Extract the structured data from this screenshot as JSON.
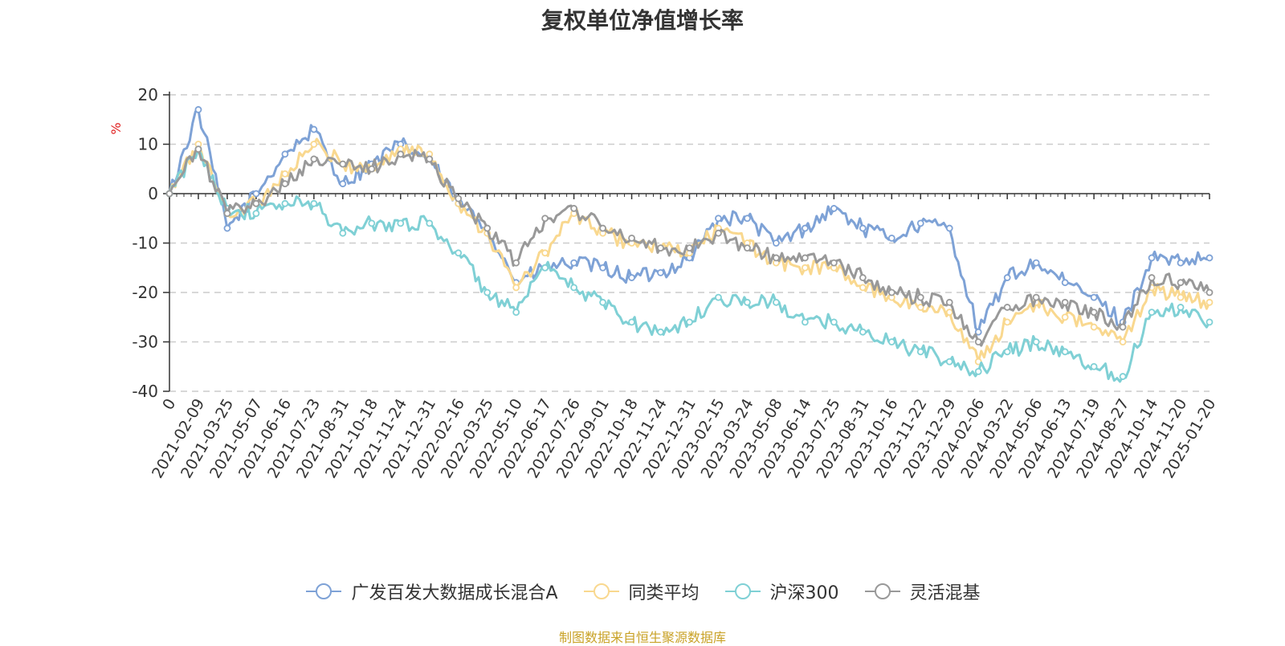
{
  "chart_data": {
    "type": "line",
    "title": "复权单位净值增长率",
    "ylabel": "%",
    "ylim": [
      -40,
      20
    ],
    "yticks": [
      20,
      10,
      0,
      -10,
      -20,
      -30,
      -40
    ],
    "grid": true,
    "legend_position": "bottom",
    "x_ticks": [
      "0",
      "2021-02-09",
      "2021-03-25",
      "2021-05-07",
      "2021-06-16",
      "2021-07-23",
      "2021-08-31",
      "2021-10-18",
      "2021-11-24",
      "2021-12-31",
      "2022-02-16",
      "2022-03-25",
      "2022-05-10",
      "2022-06-17",
      "2022-07-26",
      "2022-09-01",
      "2022-10-18",
      "2022-11-24",
      "2022-12-31",
      "2023-02-15",
      "2023-03-24",
      "2023-05-08",
      "2023-06-14",
      "2023-07-25",
      "2023-08-31",
      "2023-10-16",
      "2023-11-22",
      "2023-12-29",
      "2024-02-06",
      "2024-03-22",
      "2024-05-06",
      "2024-06-13",
      "2024-07-19",
      "2024-08-27",
      "2024-10-14",
      "2024-11-20",
      "2025-01-20"
    ],
    "series": [
      {
        "name": "广发百发大数据成长混合A",
        "color": "#7ea2d6",
        "values": [
          0,
          17,
          -7,
          0,
          8,
          13,
          2,
          6,
          10,
          7,
          -2,
          -7,
          -18,
          -15,
          -14,
          -15,
          -17,
          -16,
          -13,
          -5,
          -5,
          -10,
          -7,
          -3,
          -7,
          -9,
          -6,
          -7,
          -28,
          -17,
          -14,
          -18,
          -21,
          -26,
          -13,
          -14,
          -13
        ]
      },
      {
        "name": "同类平均",
        "color": "#f9d88f",
        "values": [
          0,
          10,
          -4,
          -2,
          4,
          10,
          6,
          5,
          9,
          8,
          -2,
          -8,
          -19,
          -12,
          -4,
          -8,
          -10,
          -11,
          -12,
          -7,
          -10,
          -14,
          -15,
          -15,
          -19,
          -21,
          -23,
          -24,
          -34,
          -26,
          -22,
          -25,
          -27,
          -30,
          -19,
          -21,
          -22
        ]
      },
      {
        "name": "沪深300",
        "color": "#7fd0d5",
        "values": [
          0,
          9,
          -3,
          -4,
          -2,
          -2,
          -8,
          -6,
          -6,
          -6,
          -12,
          -20,
          -24,
          -15,
          -19,
          -22,
          -26,
          -28,
          -26,
          -21,
          -22,
          -22,
          -26,
          -26,
          -28,
          -30,
          -32,
          -34,
          -36,
          -32,
          -30,
          -32,
          -35,
          -37,
          -24,
          -23,
          -26
        ]
      },
      {
        "name": "灵活混基",
        "color": "#999999",
        "values": [
          0,
          9,
          -4,
          -2,
          2,
          7,
          6,
          5,
          8,
          7,
          -1,
          -7,
          -14,
          -5,
          -3,
          -7,
          -9,
          -11,
          -11,
          -8,
          -11,
          -13,
          -13,
          -14,
          -17,
          -20,
          -21,
          -22,
          -30,
          -23,
          -21,
          -22,
          -24,
          -27,
          -17,
          -18,
          -20
        ]
      }
    ]
  },
  "source_note": "制图数据来自恒生聚源数据库"
}
